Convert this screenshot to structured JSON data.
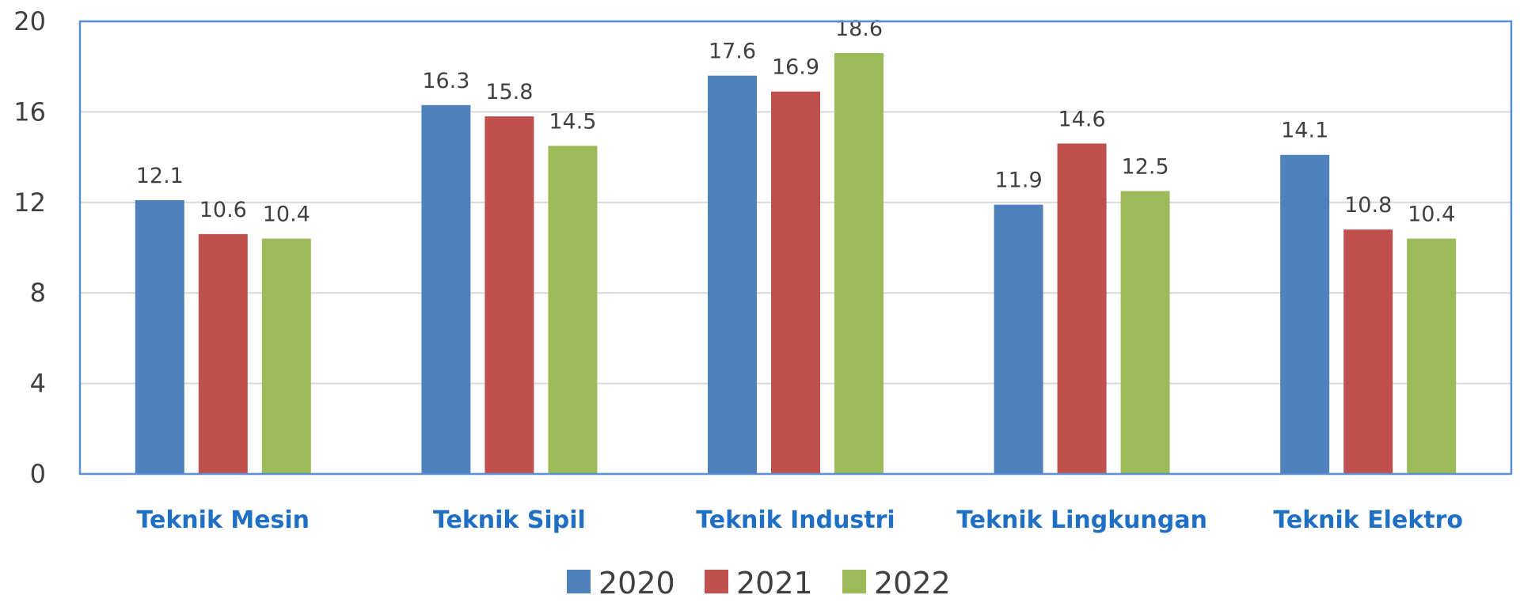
{
  "chart_data": {
    "type": "bar",
    "categories": [
      "Teknik Mesin",
      "Teknik Sipil",
      "Teknik Industri",
      "Teknik Lingkungan",
      "Teknik Elektro"
    ],
    "series": [
      {
        "name": "2020",
        "color": "#4f81bd",
        "values": [
          12.1,
          16.3,
          17.6,
          11.9,
          14.1
        ]
      },
      {
        "name": "2021",
        "color": "#c0504d",
        "values": [
          10.6,
          15.8,
          16.9,
          14.6,
          10.8
        ]
      },
      {
        "name": "2022",
        "color": "#9bbb59",
        "values": [
          10.4,
          14.5,
          18.6,
          12.5,
          10.4
        ]
      }
    ],
    "ylim": [
      0,
      20
    ],
    "yticks": [
      "0",
      "4",
      "8",
      "12",
      "16",
      "20"
    ],
    "grid": true,
    "legend": "bottom-center",
    "title": "",
    "xlabel": "",
    "ylabel": ""
  }
}
